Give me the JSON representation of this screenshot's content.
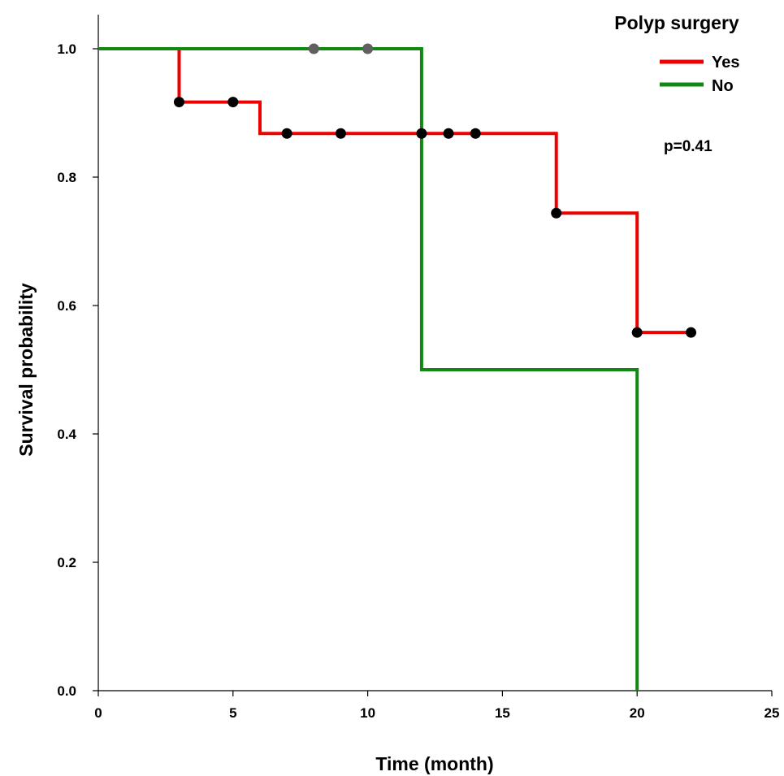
{
  "chart_data": {
    "type": "line",
    "subtype": "kaplan-meier step",
    "xlabel": "Time (month)",
    "ylabel": "Survival probability",
    "xlim": [
      0,
      25
    ],
    "ylim": [
      0,
      1
    ],
    "x_ticks": [
      0,
      5,
      10,
      15,
      20,
      25
    ],
    "y_ticks": [
      0.0,
      0.2,
      0.4,
      0.6,
      0.8,
      1.0
    ],
    "x_tick_labels": [
      "0",
      "5",
      "10",
      "15",
      "20",
      "25"
    ],
    "y_tick_labels": [
      "0.0",
      "0.2",
      "0.4",
      "0.6",
      "0.8",
      "1.0"
    ],
    "grid": false,
    "legend": {
      "title": "Polyp surgery",
      "placement": "top-right",
      "entries": [
        "Yes",
        "No"
      ]
    },
    "annotation": "p=0.41",
    "series": [
      {
        "name": "Yes",
        "color": "#ee0000",
        "steps": [
          {
            "x": 0,
            "y": 1.0
          },
          {
            "x": 3,
            "y": 0.917
          },
          {
            "x": 6,
            "y": 0.868
          },
          {
            "x": 17,
            "y": 0.744
          },
          {
            "x": 20,
            "y": 0.558
          }
        ],
        "end_x": 22,
        "censored": [
          {
            "x": 3,
            "y": 0.917
          },
          {
            "x": 5,
            "y": 0.917
          },
          {
            "x": 7,
            "y": 0.868
          },
          {
            "x": 9,
            "y": 0.868
          },
          {
            "x": 12,
            "y": 0.868
          },
          {
            "x": 13,
            "y": 0.868
          },
          {
            "x": 14,
            "y": 0.868
          },
          {
            "x": 17,
            "y": 0.744
          },
          {
            "x": 20,
            "y": 0.558
          },
          {
            "x": 22,
            "y": 0.558
          }
        ]
      },
      {
        "name": "No",
        "color": "#118811",
        "steps": [
          {
            "x": 0,
            "y": 1.0
          },
          {
            "x": 12,
            "y": 0.5
          },
          {
            "x": 20,
            "y": 0.0
          }
        ],
        "end_x": 20,
        "censored": [
          {
            "x": 8,
            "y": 1.0
          },
          {
            "x": 10,
            "y": 1.0
          }
        ]
      }
    ]
  }
}
